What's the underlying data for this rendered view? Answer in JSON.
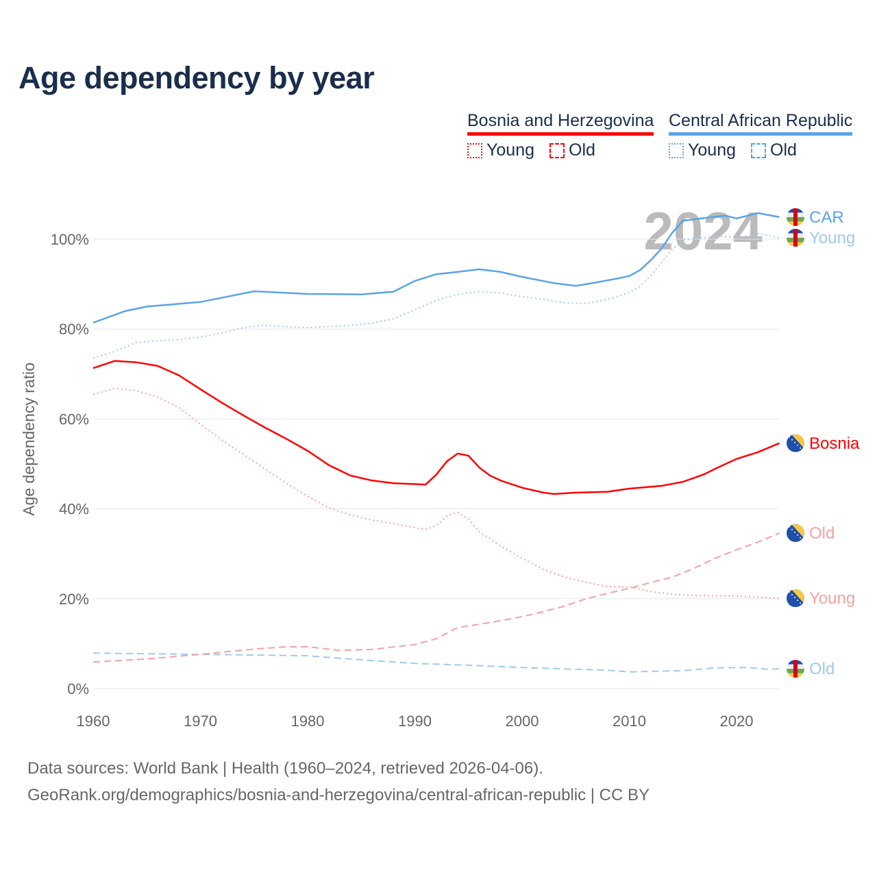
{
  "title": "Age dependency by year",
  "legend": {
    "groups": [
      {
        "name": "Bosnia and Herzegovina",
        "color": "#ff0000",
        "items": [
          "Young",
          "Old"
        ]
      },
      {
        "name": "Central African Republic",
        "color": "#5aa3e8",
        "items": [
          "Young",
          "Old"
        ]
      }
    ]
  },
  "footer": {
    "line1": "Data sources: World Bank | Health (1960–2024, retrieved 2026-04-06).",
    "line2": "GeoRank.org/demographics/bosnia-and-herzegovina/central-african-republic | CC BY"
  },
  "chart_data": {
    "type": "line",
    "title": "Age dependency by year",
    "ylabel": "Age dependency ratio",
    "xlim": [
      1960,
      2024
    ],
    "ylim": [
      0,
      110
    ],
    "year_watermark": "2024",
    "xticks": [
      "1960",
      "1970",
      "1980",
      "1990",
      "2000",
      "2010",
      "2020"
    ],
    "yticks": [
      "0%",
      "20%",
      "40%",
      "60%",
      "80%",
      "100%"
    ],
    "grid": true,
    "series": [
      {
        "name": "CAR",
        "end_label": "CAR",
        "flag": "car",
        "color": "#5aa3e8",
        "style": "solid",
        "points": [
          [
            1960,
            81.4
          ],
          [
            1963,
            84
          ],
          [
            1965,
            85
          ],
          [
            1970,
            86
          ],
          [
            1975,
            88.4
          ],
          [
            1980,
            87.8
          ],
          [
            1985,
            87.7
          ],
          [
            1988,
            88.3
          ],
          [
            1990,
            90.7
          ],
          [
            1992,
            92.2
          ],
          [
            1994,
            92.7
          ],
          [
            1996,
            93.3
          ],
          [
            1998,
            92.7
          ],
          [
            2000,
            91.6
          ],
          [
            2003,
            90.2
          ],
          [
            2005,
            89.6
          ],
          [
            2007,
            90.4
          ],
          [
            2009,
            91.3
          ],
          [
            2010,
            91.8
          ],
          [
            2011,
            93.1
          ],
          [
            2012,
            95.3
          ],
          [
            2013,
            97.9
          ],
          [
            2014,
            101.4
          ],
          [
            2015,
            104.1
          ],
          [
            2017,
            104.7
          ],
          [
            2018,
            105
          ],
          [
            2019,
            105.2
          ],
          [
            2020,
            104.6
          ],
          [
            2022,
            105.8
          ],
          [
            2024,
            104.9
          ]
        ]
      },
      {
        "name": "CAR Young",
        "end_label": "Young",
        "flag": "car",
        "color": "#9fc8f0",
        "style": "dotted",
        "points": [
          [
            1960,
            73.5
          ],
          [
            1962,
            75
          ],
          [
            1964,
            77
          ],
          [
            1966,
            77.4
          ],
          [
            1968,
            77.6
          ],
          [
            1970,
            78.2
          ],
          [
            1972,
            79.1
          ],
          [
            1974,
            80.3
          ],
          [
            1976,
            80.9
          ],
          [
            1978,
            80.5
          ],
          [
            1980,
            80.3
          ],
          [
            1984,
            80.8
          ],
          [
            1986,
            81.3
          ],
          [
            1988,
            82.3
          ],
          [
            1990,
            84.3
          ],
          [
            1992,
            86.4
          ],
          [
            1994,
            87.7
          ],
          [
            1996,
            88.3
          ],
          [
            1998,
            88
          ],
          [
            2000,
            87.2
          ],
          [
            2002,
            86.6
          ],
          [
            2004,
            85.8
          ],
          [
            2006,
            85.7
          ],
          [
            2008,
            86.6
          ],
          [
            2010,
            88.1
          ],
          [
            2011,
            89.5
          ],
          [
            2012,
            91.9
          ],
          [
            2013,
            94.8
          ],
          [
            2014,
            97.7
          ],
          [
            2015,
            99.8
          ],
          [
            2017,
            100.3
          ],
          [
            2019,
            100.6
          ],
          [
            2020,
            100.3
          ],
          [
            2022,
            101.2
          ],
          [
            2024,
            100.3
          ]
        ]
      },
      {
        "name": "CAR Old",
        "end_label": "Old",
        "flag": "car",
        "color": "#9fc8f0",
        "style": "dashed",
        "points": [
          [
            1960,
            7.9
          ],
          [
            1970,
            7.6
          ],
          [
            1980,
            7.3
          ],
          [
            1985,
            6.4
          ],
          [
            1990,
            5.6
          ],
          [
            1995,
            5.2
          ],
          [
            2000,
            4.7
          ],
          [
            2005,
            4.3
          ],
          [
            2008,
            4.1
          ],
          [
            2010,
            3.7
          ],
          [
            2015,
            4.0
          ],
          [
            2018,
            4.6
          ],
          [
            2021,
            4.7
          ],
          [
            2023,
            4.3
          ],
          [
            2024,
            4.4
          ]
        ]
      },
      {
        "name": "Bosnia",
        "end_label": "Bosnia",
        "flag": "bih",
        "color": "#ff0000",
        "style": "solid",
        "points": [
          [
            1960,
            71.3
          ],
          [
            1962,
            72.9
          ],
          [
            1964,
            72.6
          ],
          [
            1966,
            71.8
          ],
          [
            1968,
            69.7
          ],
          [
            1970,
            66.6
          ],
          [
            1972,
            63.6
          ],
          [
            1974,
            60.8
          ],
          [
            1976,
            58.1
          ],
          [
            1978,
            55.6
          ],
          [
            1980,
            52.9
          ],
          [
            1982,
            49.7
          ],
          [
            1984,
            47.4
          ],
          [
            1986,
            46.3
          ],
          [
            1988,
            45.7
          ],
          [
            1991,
            45.4
          ],
          [
            1992,
            47.6
          ],
          [
            1993,
            50.6
          ],
          [
            1994,
            52.3
          ],
          [
            1995,
            51.8
          ],
          [
            1996,
            49.2
          ],
          [
            1997,
            47.4
          ],
          [
            1998,
            46.3
          ],
          [
            2000,
            44.7
          ],
          [
            2002,
            43.6
          ],
          [
            2003,
            43.3
          ],
          [
            2005,
            43.6
          ],
          [
            2008,
            43.8
          ],
          [
            2010,
            44.5
          ],
          [
            2013,
            45.1
          ],
          [
            2015,
            46
          ],
          [
            2017,
            47.7
          ],
          [
            2018,
            48.9
          ],
          [
            2020,
            51.1
          ],
          [
            2022,
            52.6
          ],
          [
            2024,
            54.6
          ]
        ]
      },
      {
        "name": "Bosnia Old",
        "end_label": "Old",
        "flag": "bih",
        "color": "#f7a0a0",
        "style": "dashed",
        "points": [
          [
            1960,
            5.9
          ],
          [
            1965,
            6.6
          ],
          [
            1970,
            7.6
          ],
          [
            1975,
            8.8
          ],
          [
            1978,
            9.3
          ],
          [
            1980,
            9.3
          ],
          [
            1983,
            8.5
          ],
          [
            1986,
            8.7
          ],
          [
            1990,
            9.8
          ],
          [
            1992,
            11.1
          ],
          [
            1994,
            13.6
          ],
          [
            1996,
            14.3
          ],
          [
            1998,
            15.1
          ],
          [
            2000,
            16
          ],
          [
            2002,
            17.1
          ],
          [
            2004,
            18.4
          ],
          [
            2006,
            20
          ],
          [
            2008,
            21.2
          ],
          [
            2010,
            22.3
          ],
          [
            2012,
            23.6
          ],
          [
            2014,
            24.8
          ],
          [
            2016,
            26.7
          ],
          [
            2018,
            29
          ],
          [
            2020,
            30.9
          ],
          [
            2022,
            32.6
          ],
          [
            2024,
            34.6
          ]
        ]
      },
      {
        "name": "Bosnia Young",
        "end_label": "Young",
        "flag": "bih",
        "color": "#f7a0a0",
        "style": "dotted",
        "points": [
          [
            1960,
            65.4
          ],
          [
            1962,
            66.8
          ],
          [
            1964,
            66.3
          ],
          [
            1966,
            64.9
          ],
          [
            1968,
            62.5
          ],
          [
            1970,
            58.8
          ],
          [
            1972,
            55.3
          ],
          [
            1974,
            52.1
          ],
          [
            1976,
            48.9
          ],
          [
            1978,
            45.7
          ],
          [
            1980,
            42.8
          ],
          [
            1982,
            40.2
          ],
          [
            1984,
            38.6
          ],
          [
            1986,
            37.5
          ],
          [
            1988,
            36.7
          ],
          [
            1990,
            35.8
          ],
          [
            1991,
            35.4
          ],
          [
            1992,
            36.3
          ],
          [
            1993,
            38.4
          ],
          [
            1994,
            39.2
          ],
          [
            1995,
            37.7
          ],
          [
            1996,
            34.9
          ],
          [
            1998,
            31.7
          ],
          [
            2000,
            29
          ],
          [
            2002,
            26.5
          ],
          [
            2004,
            24.8
          ],
          [
            2006,
            23.6
          ],
          [
            2008,
            22.7
          ],
          [
            2010,
            22.6
          ],
          [
            2012,
            21.6
          ],
          [
            2014,
            21
          ],
          [
            2016,
            20.7
          ],
          [
            2020,
            20.6
          ],
          [
            2024,
            20.1
          ]
        ]
      }
    ]
  }
}
